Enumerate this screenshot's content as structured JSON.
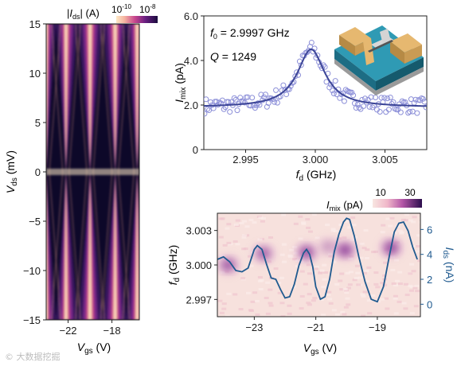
{
  "colors": {
    "magma_dark": "#0d0829",
    "magma_mid": "#7b2a8c",
    "magma_bright": "#fde9c6",
    "data_points": "#8c8fd8",
    "fit_line": "#3c4597",
    "ids_line": "#1f5a8f",
    "axis": "#222222",
    "axis_label_right": "#1f5a8f"
  },
  "panels": {
    "left": {
      "colorbar_label": "|I_ds| (A)",
      "colorbar_ticks": [
        "10",
        "10"
      ],
      "colorbar_tick_exp": [
        "-10",
        "-8"
      ],
      "ylabel": "V_ds (mV)",
      "xlabel": "V_gs (V)",
      "yticks": [
        "15",
        "10",
        "5",
        "0",
        "−5",
        "−10",
        "−15"
      ],
      "xticks": [
        "−22",
        "−18"
      ]
    },
    "top_right": {
      "annotation_f0": "f_0 = 2.9997 GHz",
      "annotation_q": "Q = 1249",
      "ylabel": "I_mix (pA)",
      "xlabel": "f_d (GHz)",
      "yticks": [
        "6.0",
        "4.0",
        "2.0",
        "0"
      ],
      "xticks": [
        "2.995",
        "3.000",
        "3.005"
      ]
    },
    "bottom_right": {
      "colorbar_label": "I_mix (pA)",
      "colorbar_ticks": [
        "10",
        "30"
      ],
      "ylabel_left": "f_d (GHz)",
      "ylabel_right": "I_ds (nA)",
      "xlabel": "V_gs (V)",
      "yticks_left": [
        "3.003",
        "3.000",
        "2.997"
      ],
      "yticks_right": [
        "6",
        "4",
        "2",
        "0"
      ],
      "xticks": [
        "−23",
        "−21",
        "−19"
      ]
    }
  },
  "watermark": "© 大数据挖掘",
  "chart_data": [
    {
      "type": "heatmap",
      "description_of_pattern": "Coulomb-diamond map of |I_ds| versus V_gs and V_ds",
      "x_axis": {
        "label": "V_gs (V)",
        "range": [
          -24.0,
          -15.5
        ],
        "ticks": [
          -22,
          -18
        ]
      },
      "y_axis": {
        "label": "V_ds (mV)",
        "range": [
          -15,
          15
        ],
        "ticks": [
          15,
          10,
          5,
          0,
          -5,
          -10,
          -15
        ]
      },
      "color_scale": {
        "label": "|I_ds| (A)",
        "range": [
          1e-10,
          1e-08
        ],
        "log": true
      },
      "diamond_nodes_vgs": [
        -24.0,
        -22.2,
        -20.0,
        -17.7,
        -15.7
      ]
    },
    {
      "type": "scatter",
      "x_axis": {
        "label": "f_d (GHz)",
        "range": [
          2.992,
          3.008
        ],
        "ticks": [
          2.995,
          3.0,
          3.005
        ]
      },
      "y_axis": {
        "label": "I_mix (pA)",
        "range": [
          0,
          6
        ],
        "ticks": [
          6.0,
          4.0,
          2.0,
          0
        ]
      },
      "fit": {
        "type": "lorentzian",
        "f0": 2.9997,
        "Q": 1249,
        "baseline": 1.9,
        "peak": 4.5
      },
      "points_sampled": 150,
      "noise_amplitude": 0.35
    },
    {
      "type": "heatmap",
      "x_axis": {
        "label": "V_gs (V)",
        "range": [
          -24.2,
          -17.6
        ],
        "ticks": [
          -23,
          -21,
          -19
        ]
      },
      "y_axis": {
        "label": "f_d (GHz)",
        "range": [
          2.9955,
          3.0045
        ],
        "ticks": [
          3.003,
          3.0,
          2.997
        ]
      },
      "y2_axis": {
        "label": "I_ds (nA)",
        "range": [
          -1,
          7.3
        ],
        "ticks": [
          6,
          4,
          2,
          0
        ]
      },
      "color_scale": {
        "label": "I_mix (pA)",
        "ticks": [
          10,
          30
        ]
      },
      "blobs": [
        {
          "vgs": -23.85,
          "fd": 3.0,
          "strength": 0.75
        },
        {
          "vgs": -22.7,
          "fd": 3.001,
          "strength": 0.7
        },
        {
          "vgs": -21.3,
          "fd": 3.0011,
          "strength": 0.85
        },
        {
          "vgs": -20.6,
          "fd": 3.0016,
          "strength": 0.35
        },
        {
          "vgs": -20.05,
          "fd": 3.0013,
          "strength": 0.9
        },
        {
          "vgs": -18.55,
          "fd": 3.0015,
          "strength": 0.9
        }
      ],
      "ids_line": {
        "x": [
          -24.2,
          -24.0,
          -23.8,
          -23.6,
          -23.4,
          -23.2,
          -23.0,
          -22.9,
          -22.75,
          -22.6,
          -22.45,
          -22.3,
          -22.15,
          -22.0,
          -21.85,
          -21.7,
          -21.55,
          -21.4,
          -21.3,
          -21.2,
          -21.1,
          -21.0,
          -20.85,
          -20.7,
          -20.55,
          -20.4,
          -20.25,
          -20.1,
          -20.0,
          -19.9,
          -19.75,
          -19.6,
          -19.4,
          -19.2,
          -19.0,
          -18.8,
          -18.6,
          -18.45,
          -18.3,
          -18.15,
          -18.0,
          -17.85,
          -17.7
        ],
        "y": [
          3.6,
          3.8,
          3.4,
          2.7,
          2.6,
          2.9,
          4.4,
          4.7,
          4.4,
          3.2,
          2.1,
          2.0,
          1.2,
          0.5,
          0.6,
          1.6,
          3.1,
          4.1,
          4.4,
          4.0,
          3.0,
          1.4,
          0.4,
          0.6,
          2.0,
          4.2,
          5.6,
          6.6,
          6.9,
          6.8,
          5.5,
          3.8,
          1.8,
          0.4,
          0.2,
          1.4,
          4.0,
          5.8,
          6.5,
          6.6,
          5.9,
          4.6,
          3.6
        ]
      }
    }
  ]
}
